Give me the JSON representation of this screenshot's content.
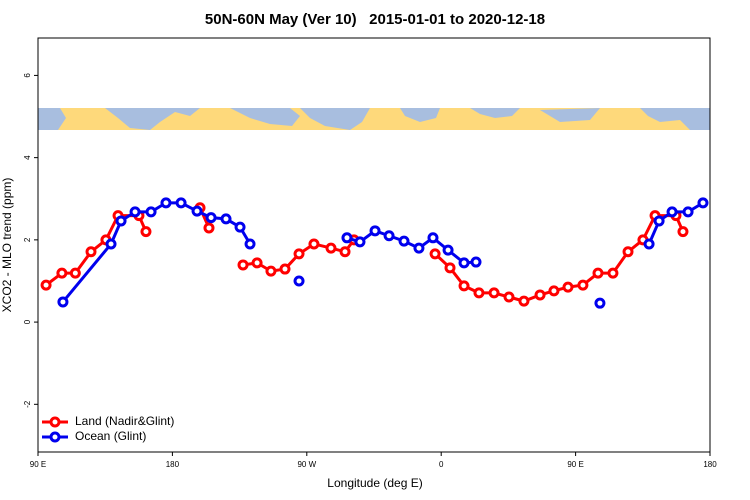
{
  "chart_data": {
    "type": "line",
    "title": "50N-60N May (Ver 10)   2015-01-01 to 2020-12-18",
    "x_label": "Longitude (deg E)",
    "y_label": "XCO2 - MLO trend (ppm)",
    "xlim": [
      90,
      540
    ],
    "ylim": [
      -3.16,
      6.91
    ],
    "xticks": [
      {
        "value": 90,
        "label": "90 E"
      },
      180,
      {
        "value": 270,
        "label": "90 W"
      },
      {
        "value": 360,
        "label": "0"
      },
      {
        "value": 450,
        "label": "90 E"
      },
      {
        "value": 540,
        "label": "180"
      }
    ],
    "yticks": [
      -2,
      0,
      2,
      4,
      6
    ],
    "legend_position": "bottom-left",
    "series": [
      {
        "name": "Land (Nadir&Glint)",
        "color": "#ff0000",
        "x": [
          95.4,
          106,
          115,
          125.5,
          135.5,
          143.6,
          157.6,
          162.3,
          null,
          198.5,
          204.5,
          null,
          227.3,
          236.7,
          246,
          255.4,
          264.8,
          274.8,
          286.2,
          295.6,
          301.6,
          null,
          355.9,
          365.9,
          375.3,
          385.3,
          395.4,
          405.4,
          415.4,
          426.2,
          435.5,
          444.9,
          454.9,
          465,
          475,
          485.1,
          495.1,
          503.2,
          517.2,
          521.9
        ],
        "values": [
          0.9,
          1.19,
          1.19,
          1.71,
          2.0,
          2.59,
          2.59,
          2.2,
          null,
          2.78,
          2.29,
          null,
          1.39,
          1.44,
          1.24,
          1.29,
          1.66,
          1.9,
          1.8,
          1.71,
          2.0,
          null,
          1.66,
          1.32,
          0.88,
          0.71,
          0.71,
          0.61,
          0.51,
          0.66,
          0.76,
          0.85,
          0.9,
          1.19,
          1.19,
          1.71,
          2.0,
          2.59,
          2.59,
          2.2
        ]
      },
      {
        "name": "Ocean (Glint)",
        "color": "#0000ee",
        "x": [
          106.7,
          138.9,
          145.6,
          155,
          165.7,
          175.7,
          185.8,
          196.5,
          205.9,
          215.9,
          225.3,
          232,
          null,
          264.8,
          null,
          296.9,
          305.6,
          315.7,
          325.1,
          335.1,
          345.1,
          354.5,
          364.6,
          375.3,
          383.3,
          null,
          466.3,
          null,
          499.2,
          505.9,
          514.6,
          525.3,
          535.3
        ],
        "values": [
          0.49,
          1.9,
          2.46,
          2.68,
          2.68,
          2.9,
          2.9,
          2.7,
          2.54,
          2.51,
          2.31,
          1.9,
          null,
          1.0,
          null,
          2.05,
          1.95,
          2.22,
          2.1,
          1.97,
          1.8,
          2.05,
          1.75,
          1.44,
          1.46,
          null,
          0.46,
          null,
          1.9,
          2.46,
          2.68,
          2.68,
          2.9
        ]
      }
    ]
  }
}
